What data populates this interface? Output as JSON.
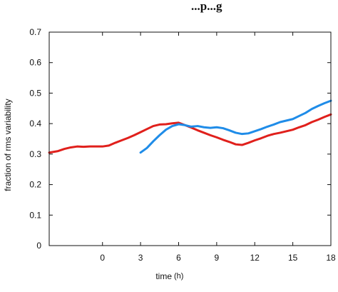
{
  "chart_data": {
    "type": "line",
    "title_fragment": "...p...g",
    "xlabel": "time",
    "xlabel_unit": "(h)",
    "ylabel": "fraction of rms  variability",
    "xlim": [
      -4.2,
      18
    ],
    "ylim": [
      0,
      0.7
    ],
    "xticks": [
      {
        "value": 0,
        "label": "0"
      },
      {
        "value": 3,
        "label": "3"
      },
      {
        "value": 6,
        "label": "6"
      },
      {
        "value": 9,
        "label": "9"
      },
      {
        "value": 12,
        "label": "12"
      },
      {
        "value": 15,
        "label": "15"
      },
      {
        "value": 18,
        "label": "18"
      }
    ],
    "yticks": [
      {
        "value": 0,
        "label": "0"
      },
      {
        "value": 0.1,
        "label": "0.1"
      },
      {
        "value": 0.2,
        "label": "0.2"
      },
      {
        "value": 0.3,
        "label": "0.3"
      },
      {
        "value": 0.4,
        "label": "0.4"
      },
      {
        "value": 0.5,
        "label": "0.5"
      },
      {
        "value": 0.6,
        "label": "0.6"
      },
      {
        "value": 0.7,
        "label": "0.7"
      }
    ],
    "grid": false,
    "series": [
      {
        "color": "#e0201c",
        "x": [
          -4.2,
          -3.5,
          -3,
          -2.5,
          -2,
          -1.5,
          -1,
          -0.5,
          0,
          0.5,
          1,
          1.5,
          2,
          2.5,
          3,
          3.5,
          4,
          4.5,
          5,
          5.5,
          6,
          6.5,
          7,
          7.5,
          8,
          8.5,
          9,
          9.5,
          10,
          10.5,
          11,
          11.5,
          12,
          12.5,
          13,
          13.5,
          14,
          14.5,
          15,
          15.5,
          16,
          16.5,
          17,
          17.5,
          18
        ],
        "y": [
          0.305,
          0.31,
          0.317,
          0.322,
          0.325,
          0.324,
          0.325,
          0.325,
          0.325,
          0.328,
          0.337,
          0.345,
          0.353,
          0.362,
          0.372,
          0.382,
          0.392,
          0.397,
          0.398,
          0.401,
          0.403,
          0.395,
          0.387,
          0.378,
          0.37,
          0.362,
          0.355,
          0.347,
          0.34,
          0.332,
          0.33,
          0.337,
          0.345,
          0.352,
          0.36,
          0.366,
          0.37,
          0.375,
          0.38,
          0.388,
          0.395,
          0.405,
          0.413,
          0.422,
          0.43
        ]
      },
      {
        "color": "#1f8ce8",
        "x": [
          3,
          3.5,
          4,
          4.5,
          5,
          5.5,
          6,
          6.5,
          7,
          7.5,
          8,
          8.5,
          9,
          9.5,
          10,
          10.5,
          11,
          11.5,
          12,
          12.5,
          13,
          13.5,
          14,
          14.5,
          15,
          15.5,
          16,
          16.5,
          17,
          17.5,
          18
        ],
        "y": [
          0.305,
          0.32,
          0.342,
          0.362,
          0.38,
          0.392,
          0.398,
          0.395,
          0.39,
          0.392,
          0.388,
          0.386,
          0.388,
          0.385,
          0.378,
          0.37,
          0.366,
          0.368,
          0.375,
          0.382,
          0.39,
          0.397,
          0.405,
          0.41,
          0.415,
          0.425,
          0.435,
          0.448,
          0.458,
          0.467,
          0.475
        ]
      }
    ]
  }
}
